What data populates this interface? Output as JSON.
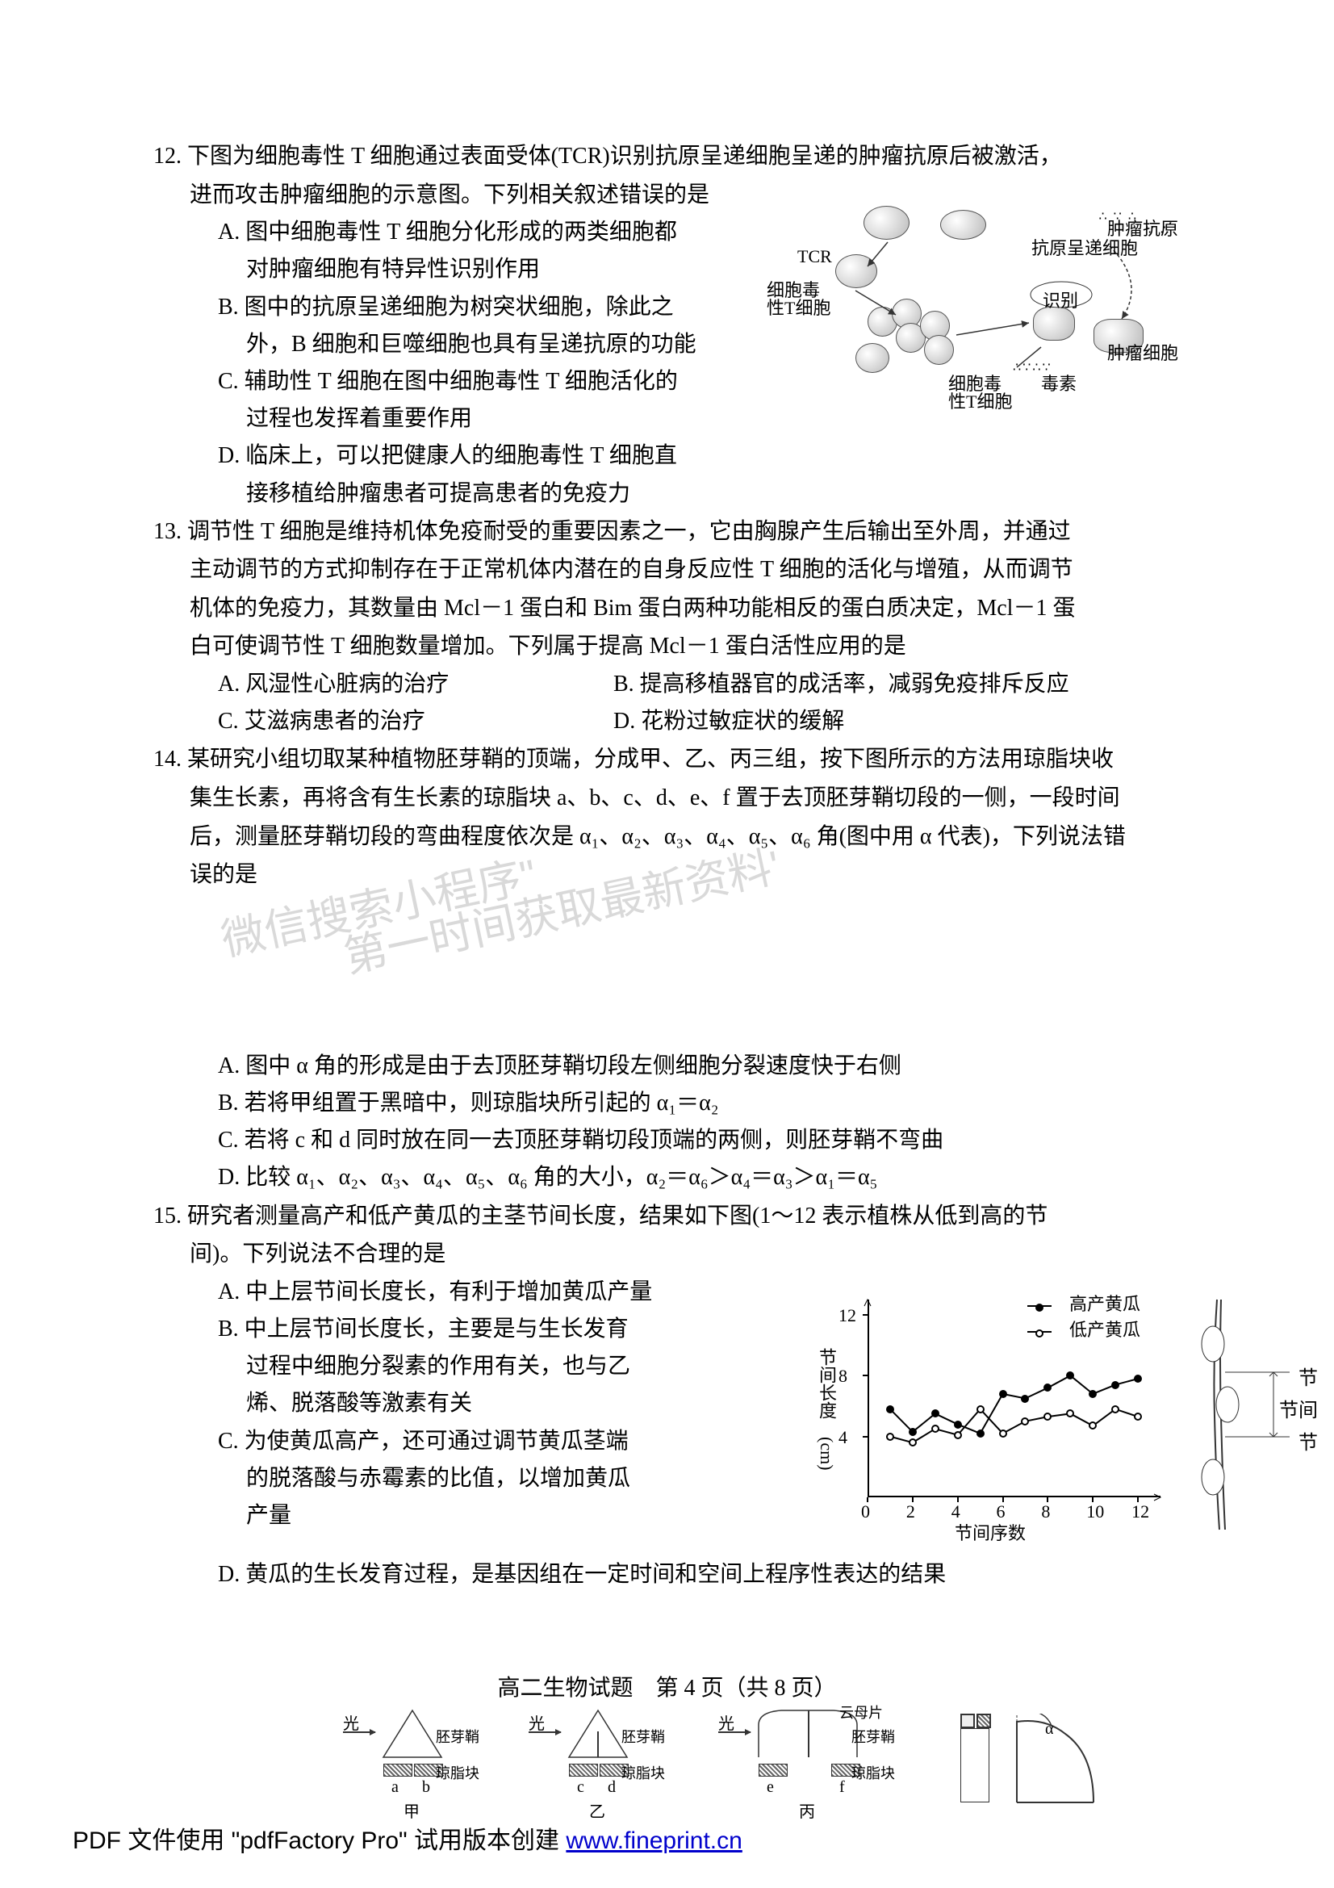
{
  "q12": {
    "title": "12. 下图为细胞毒性 T 细胞通过表面受体(TCR)识别抗原呈递细胞呈递的肿瘤抗原后被激活，",
    "title2": "进而攻击肿瘤细胞的示意图。下列相关叙述错误的是",
    "A1": "A. 图中细胞毒性 T 细胞分化形成的两类细胞都",
    "A2": "对肿瘤细胞有特异性识别作用",
    "B1": "B. 图中的抗原呈递细胞为树突状细胞，除此之",
    "B2": "外，B 细胞和巨噬细胞也具有呈递抗原的功能",
    "C1": "C. 辅助性 T 细胞在图中细胞毒性 T 细胞活化的",
    "C2": "过程也发挥着重要作用",
    "D1": "D. 临床上，可以把健康人的细胞毒性 T 细胞直",
    "D2": "接移植给肿瘤患者可提高患者的免疫力",
    "labels": {
      "antigen": "肿瘤抗原",
      "apc": "抗原呈递细胞",
      "tcr": "TCR",
      "ctc1": "细胞毒",
      "ctc2": "性T细胞",
      "recog": "识别",
      "tumor": "肿瘤细胞",
      "toxin": "毒素",
      "ctc3": "细胞毒",
      "ctc4": "性T细胞"
    }
  },
  "q13": {
    "title": "13. 调节性 T 细胞是维持机体免疫耐受的重要因素之一，它由胸腺产生后输出至外周，并通过",
    "l2": "主动调节的方式抑制存在于正常机体内潜在的自身反应性 T 细胞的活化与增殖，从而调节",
    "l3": "机体的免疫力，其数量由 Mcl－1 蛋白和 Bim 蛋白两种功能相反的蛋白质决定，Mcl－1 蛋",
    "l4": "白可使调节性 T 细胞数量增加。下列属于提高 Mcl－1 蛋白活性应用的是",
    "A": "A. 风湿性心脏病的治疗",
    "B": "B. 提高移植器官的成活率，减弱免疫排斥反应",
    "C": "C. 艾滋病患者的治疗",
    "D": "D. 花粉过敏症状的缓解"
  },
  "q14": {
    "title": "14. 某研究小组切取某种植物胚芽鞘的顶端，分成甲、乙、丙三组，按下图所示的方法用琼脂块收",
    "l2": "集生长素，再将含有生长素的琼脂块 a、b、c、d、e、f 置于去顶胚芽鞘切段的一侧，一段时间",
    "l3": "后，测量胚芽鞘切段的弯曲程度依次是 α₁、α₂、α₃、α₄、α₅、α₆ 角(图中用 α 代表)，下列说法错",
    "l4": "误的是",
    "labels": {
      "light": "光",
      "coleoptile": "胚芽鞘",
      "block": "琼脂块",
      "mica": "云母片",
      "jia": "甲",
      "yi": "乙",
      "bing": "丙",
      "a": "a",
      "b": "b",
      "c": "c",
      "d": "d",
      "e": "e",
      "f": "f",
      "alpha": "α"
    },
    "A": "A. 图中 α 角的形成是由于去顶胚芽鞘切段左侧细胞分裂速度快于右侧",
    "B": "B. 若将甲组置于黑暗中，则琼脂块所引起的 α₁＝α₂",
    "C": "C. 若将 c 和 d 同时放在同一去顶胚芽鞘切段顶端的两侧，则胚芽鞘不弯曲",
    "D": "D. 比较 α₁、α₂、α₃、α₄、α₅、α₆ 角的大小，α₂＝α₆＞α₄＝α₃＞α₁＝α₅"
  },
  "q15": {
    "title": "15. 研究者测量高产和低产黄瓜的主茎节间长度，结果如下图(1～12 表示植株从低到高的节",
    "l2": "间)。下列说法不合理的是",
    "A": "A. 中上层节间长度长，有利于增加黄瓜产量",
    "B1": "B. 中上层节间长度长，主要是与生长发育",
    "B2": "过程中细胞分裂素的作用有关，也与乙",
    "B3": "烯、脱落酸等激素有关",
    "C1": "C. 为使黄瓜高产，还可通过调节黄瓜茎端",
    "C2": "的脱落酸与赤霉素的比值，以增加黄瓜",
    "C3": "产量",
    "D": "D. 黄瓜的生长发育过程，是基因组在一定时间和空间上程序性表达的结果",
    "chart": {
      "xlabel": "节间序数",
      "ylabel": "节间长度",
      "yunit": "(cm)",
      "legend1": "高产黄瓜",
      "legend2": "低产黄瓜",
      "xmin": 0,
      "xmax": 13,
      "ymin": 0,
      "ymax": 13,
      "xticks": [
        0,
        2,
        4,
        6,
        8,
        10,
        12
      ],
      "yticks": [
        4,
        8,
        12
      ],
      "high": [
        5.8,
        4.3,
        5.5,
        4.8,
        4.2,
        6.8,
        6.5,
        7.2,
        8.0,
        6.8,
        7.4,
        7.8
      ],
      "low": [
        4.0,
        3.6,
        4.5,
        4.1,
        5.8,
        4.2,
        5.0,
        5.3,
        5.5,
        4.7,
        5.8,
        5.3
      ]
    },
    "plant": {
      "jie": "节",
      "jiejian": "节间"
    }
  },
  "footer": "高二生物试题　第 4 页（共 8 页）",
  "pdf": {
    "prefix": "PDF 文件使用 \"pdfFactory Pro\" 试用版本创建 ",
    "link": "www.fineprint.cn"
  },
  "watermark": {
    "l1": "微信搜索小程序\"",
    "l2": "第一时间获取最新资料'"
  }
}
